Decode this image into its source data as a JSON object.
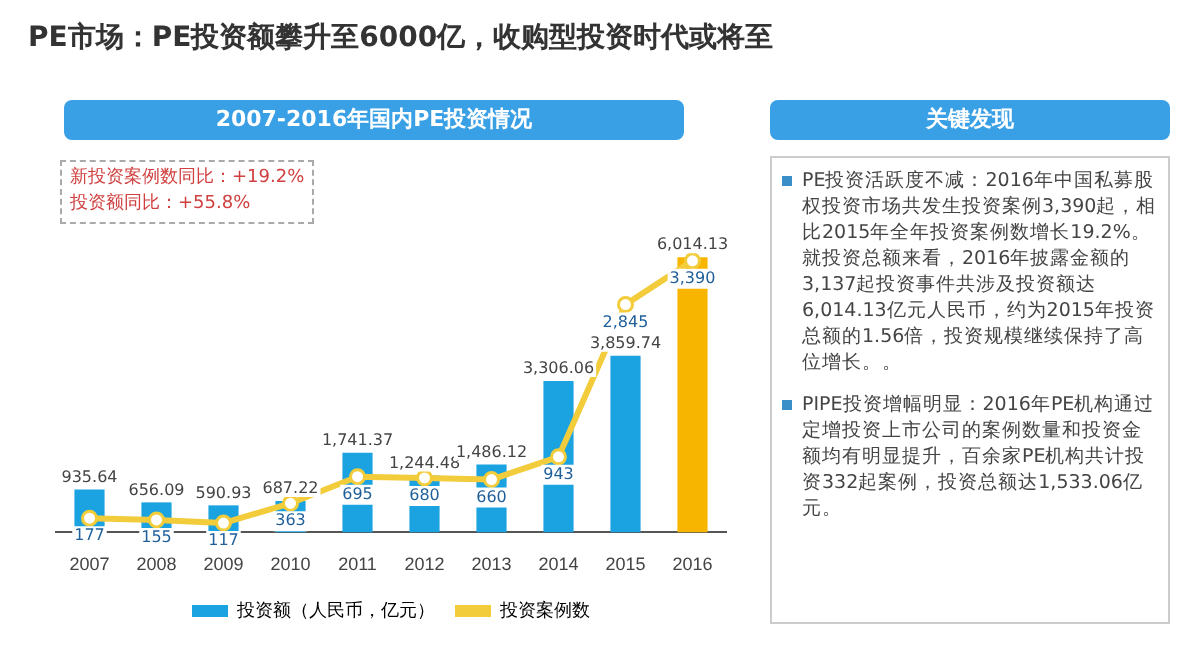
{
  "chart_data": [
    {
      "type": "bar",
      "title": "PE市场：PE投资额攀升至6000亿，收购型投资时代或将至",
      "subtitle": "2007-2016年国内PE投资情况",
      "categories": [
        "2007",
        "2008",
        "2009",
        "2010",
        "2011",
        "2012",
        "2013",
        "2014",
        "2015",
        "2016"
      ],
      "series": [
        {
          "name": "投资额（人民币，亿元）",
          "type": "bar",
          "color": "#1aa3e0",
          "colors": [
            "#1aa3e0",
            "#1aa3e0",
            "#1aa3e0",
            "#1aa3e0",
            "#1aa3e0",
            "#1aa3e0",
            "#1aa3e0",
            "#1aa3e0",
            "#1aa3e0",
            "#f7b500"
          ],
          "values": [
            935.64,
            656.09,
            590.93,
            687.22,
            1741.37,
            1244.48,
            1486.12,
            3306.06,
            3859.74,
            6014.13
          ],
          "value_labels": [
            "935.64",
            "656.09",
            "590.93",
            "687.22",
            "1,741.37",
            "1,244.48",
            "1,486.12",
            "3,306.06",
            "3,859.74",
            "6,014.13"
          ]
        },
        {
          "name": "投资案例数",
          "type": "line",
          "axis": "y2",
          "color": "#f2cc3a",
          "values": [
            177,
            155,
            117,
            363,
            695,
            680,
            660,
            943,
            2845,
            3390
          ],
          "value_labels": [
            "177",
            "155",
            "117",
            "363",
            "695",
            "680",
            "660",
            "943",
            "2,845",
            "3,390"
          ]
        }
      ],
      "annotations": [
        "新投资案例数同比：+19.2%",
        "投资额同比：+55.8%"
      ],
      "data_labels": true,
      "legend": "bottom",
      "tick_labels": "x",
      "marker": "circle"
    },
    {
      "type": "other",
      "title": "关键发现",
      "annotations": [
        "PE投资活跃度不减：2016年中国私募股权投资市场共发生投资案例3,390起，相比2015年全年投资案例数增长19.2%。就投资总额来看，2016年披露金额的3,137起投资事件共涉及投资额达6,014.13亿元人民币，约为2015年投资总额的1.56倍，投资规模继续保持了高位增长。。",
        "PIPE投资增幅明显：2016年PE机构通过定增投资上市公司的案例数量和投资金额均有明显提升，百余家PE机构共计投资332起案例，投资总额达1,533.06亿元。"
      ]
    }
  ]
}
